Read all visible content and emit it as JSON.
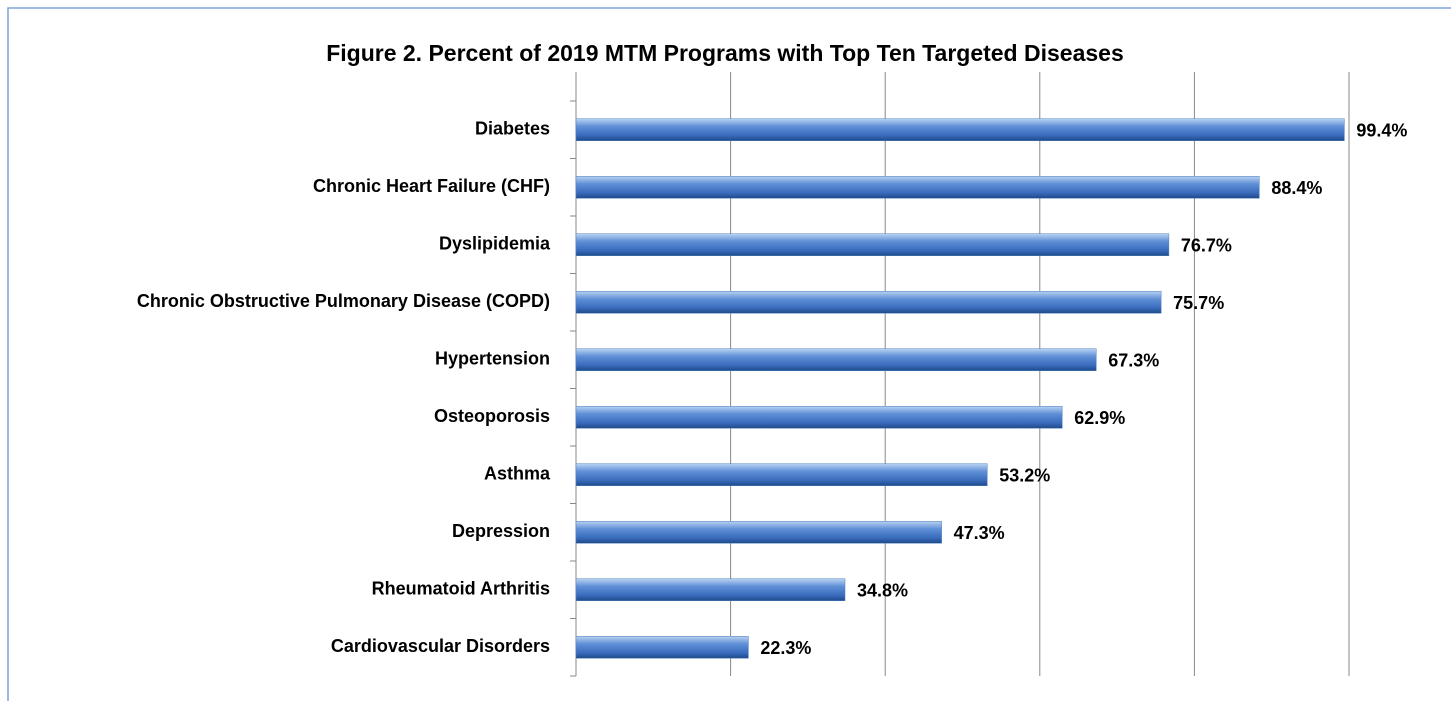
{
  "chart_data": {
    "type": "hbar",
    "title": "Figure 2. Percent of 2019 MTM Programs with Top Ten Targeted Diseases",
    "categories": [
      "Diabetes",
      "Chronic Heart Failure (CHF)",
      "Dyslipidemia",
      "Chronic Obstructive Pulmonary Disease (COPD)",
      "Hypertension",
      "Osteoporosis",
      "Asthma",
      "Depression",
      "Rheumatoid Arthritis",
      "Cardiovascular Disorders"
    ],
    "values": [
      99.4,
      88.4,
      76.7,
      75.7,
      67.3,
      62.9,
      53.2,
      47.3,
      34.8,
      22.3
    ],
    "value_labels": [
      "99.4%",
      "88.4%",
      "76.7%",
      "75.7%",
      "67.3%",
      "62.9%",
      "53.2%",
      "47.3%",
      "34.8%",
      "22.3%"
    ],
    "color": "#4f81bd",
    "xlim": [
      0,
      100
    ],
    "xticks": [
      0,
      20,
      40,
      60,
      80,
      100
    ],
    "grid": true
  }
}
